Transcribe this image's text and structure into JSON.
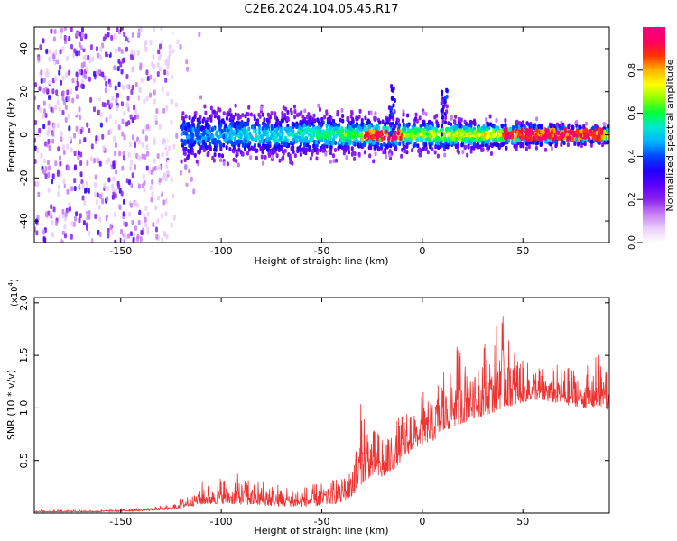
{
  "title": "C2E6.2024.104.05.45.R17",
  "chart_data": [
    {
      "type": "heatmap",
      "xlabel": "Height of straight line (km)",
      "ylabel": "Frequency (Hz)",
      "xlim": [
        -193,
        93
      ],
      "ylim": [
        -50,
        50
      ],
      "x_ticks": [
        -150,
        -100,
        -50,
        0,
        50
      ],
      "y_ticks": [
        -40,
        -20,
        0,
        20,
        40
      ],
      "colorbar": {
        "label": "Normalized spectral amplitude",
        "range": [
          0,
          1
        ],
        "ticks": [
          "0.0",
          "0.2",
          "0.4",
          "0.6",
          "0.8"
        ],
        "colormap": [
          "#ffffff",
          "#e9cdfb",
          "#c77ef6",
          "#8a22ec",
          "#5a00ff",
          "#1f00ff",
          "#0046ff",
          "#00b4ff",
          "#00e6d2",
          "#00ff3c",
          "#8cff00",
          "#ffff00",
          "#ffb400",
          "#ff3200",
          "#ff0064",
          "#f00082"
        ]
      },
      "description_points": {
        "center_frequency_hz": 0,
        "noise_region_x": [
          -193,
          -120
        ],
        "signal_region_x": [
          -120,
          93
        ],
        "peak_bands": [
          [
            -30,
            -10
          ],
          [
            40,
            90
          ]
        ],
        "spikes": [
          {
            "x": -15,
            "y": 25
          },
          {
            "x": 11,
            "y": 22
          }
        ]
      }
    },
    {
      "type": "line",
      "xlabel": "Height of straight line (km)",
      "ylabel": "SNR (10 * v/v)",
      "y_multiplier_label": "(x10",
      "y_multiplier_exp": "4",
      "y_multiplier_close": ")",
      "xlim": [
        -193,
        93
      ],
      "ylim": [
        0,
        2.05
      ],
      "x_ticks": [
        -150,
        -100,
        -50,
        0,
        50
      ],
      "y_ticks": [
        "0.5",
        "1.0",
        "1.5",
        "2.0"
      ],
      "line_color": "#ee3333",
      "envelope": {
        "x": [
          -193,
          -160,
          -140,
          -125,
          -120,
          -110,
          -100,
          -90,
          -80,
          -70,
          -60,
          -50,
          -40,
          -35,
          -30,
          -25,
          -20,
          -15,
          -10,
          -5,
          0,
          5,
          10,
          15,
          20,
          25,
          30,
          35,
          40,
          45,
          50,
          55,
          60,
          65,
          70,
          75,
          80,
          85,
          90,
          93
        ],
        "base": [
          0.01,
          0.01,
          0.02,
          0.03,
          0.05,
          0.08,
          0.09,
          0.08,
          0.07,
          0.06,
          0.06,
          0.07,
          0.1,
          0.15,
          0.28,
          0.35,
          0.32,
          0.4,
          0.5,
          0.6,
          0.65,
          0.68,
          0.75,
          0.82,
          0.85,
          0.9,
          0.92,
          0.95,
          1.0,
          1.02,
          1.05,
          1.08,
          1.06,
          1.05,
          1.03,
          1.02,
          1.0,
          1.0,
          0.98,
          0.98
        ],
        "peak": [
          0.03,
          0.03,
          0.05,
          0.08,
          0.15,
          0.3,
          0.35,
          0.38,
          0.32,
          0.28,
          0.25,
          0.3,
          0.4,
          0.55,
          1.12,
          0.8,
          0.78,
          0.85,
          0.95,
          1.05,
          1.15,
          1.2,
          1.45,
          1.55,
          1.68,
          1.55,
          1.65,
          1.7,
          2.05,
          1.6,
          1.45,
          1.42,
          1.4,
          1.45,
          1.38,
          1.4,
          1.35,
          1.48,
          1.55,
          1.5
        ]
      }
    }
  ]
}
